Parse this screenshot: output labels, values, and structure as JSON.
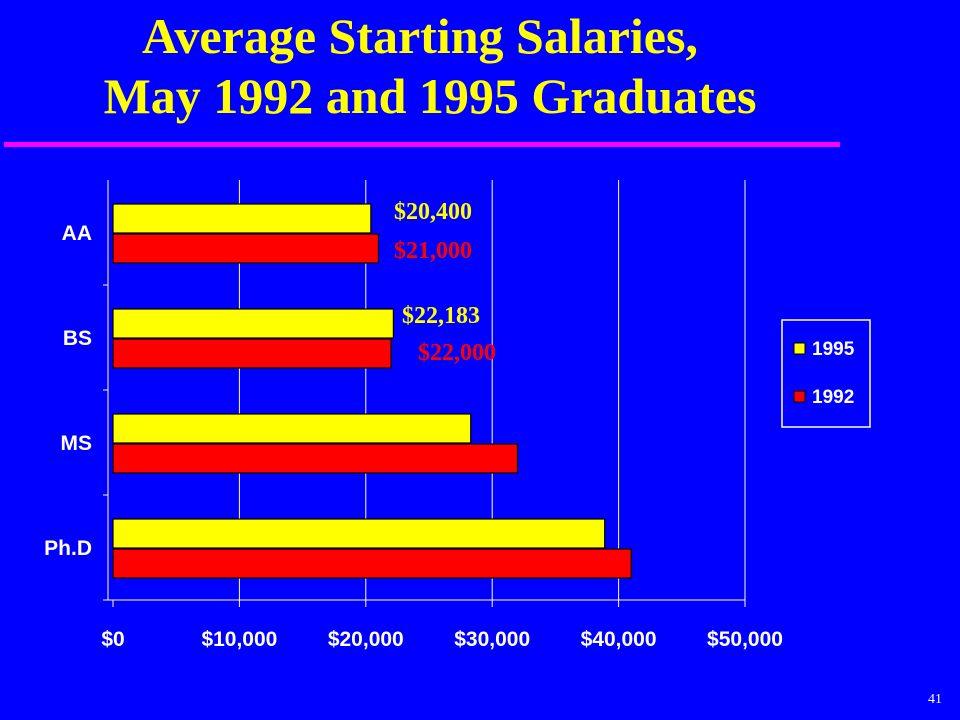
{
  "title_line1": "Average Starting Salaries,",
  "title_line2": "May 1992 and 1995 Graduates",
  "page_number": "41",
  "colors": {
    "background": "#0000ff",
    "title": "#ffff00",
    "rule": "#ff00ff",
    "series_1995": "#ffff00",
    "series_1992": "#ff0000"
  },
  "chart_data": {
    "type": "bar",
    "orientation": "horizontal",
    "categories": [
      "AA",
      "BS",
      "MS",
      "Ph.D"
    ],
    "series": [
      {
        "name": "1995",
        "color": "#ffff00",
        "values": [
          20400,
          22183,
          28300,
          38900
        ]
      },
      {
        "name": "1992",
        "color": "#ff0000",
        "values": [
          21000,
          22000,
          32000,
          41000
        ]
      }
    ],
    "xticks": [
      "$0",
      "$10,000",
      "$20,000",
      "$30,000",
      "$40,000",
      "$50,000"
    ],
    "xlim": [
      0,
      50000
    ],
    "grid": "vertical",
    "legend": "right",
    "annotations": [
      {
        "text": "$20,400",
        "category": "AA",
        "series": "1995",
        "color": "#ffff00"
      },
      {
        "text": "$21,000",
        "category": "AA",
        "series": "1992",
        "color": "#ff0000"
      },
      {
        "text": "$22,183",
        "category": "BS",
        "series": "1995",
        "color": "#ffff00"
      },
      {
        "text": "$22,000",
        "category": "BS",
        "series": "1992",
        "color": "#ff0000"
      }
    ]
  }
}
